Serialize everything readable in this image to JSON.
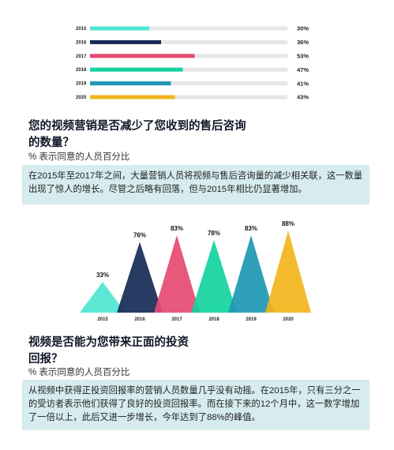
{
  "chart_data": [
    {
      "type": "bar",
      "orientation": "horizontal",
      "categories": [
        "2015",
        "2016",
        "2017",
        "2018",
        "2019",
        "2020"
      ],
      "values": [
        30,
        36,
        53,
        47,
        41,
        43
      ],
      "value_labels": [
        "30%",
        "36%",
        "53%",
        "47%",
        "41%",
        "43%"
      ],
      "colors": [
        "#4ee6d1",
        "#162a55",
        "#e54a71",
        "#12d3a0",
        "#1e98b4",
        "#f2b51b"
      ],
      "track_color": "#e6e6e6",
      "xlim": [
        0,
        100
      ],
      "title": "您的视频营销是否减少了您收到的售后咨询\n的数量？",
      "subtitle": "% 表示同意的人员百分比",
      "note": "在2015年至2017年之间，大量营销人员将视频与售后咨询量的减少相关联，这一数量出现了惊人的增长。尽管之后略有回落，但与2015年相比仍显著增加。"
    },
    {
      "type": "triangle-bar",
      "categories": [
        "2015",
        "2016",
        "2017",
        "2018",
        "2019",
        "2020"
      ],
      "values": [
        33,
        76,
        83,
        78,
        83,
        88
      ],
      "value_labels": [
        "33%",
        "76%",
        "83%",
        "78%",
        "83%",
        "88%"
      ],
      "colors": [
        "#4ee6d1",
        "#162a55",
        "#e54a71",
        "#12d3a0",
        "#1e98b4",
        "#f2b51b"
      ],
      "ylim": [
        0,
        100
      ],
      "title": "视频是否能为您带来正面的投资\n回报？",
      "subtitle": "% 表示同意的人员百分比",
      "note": "从视频中获得正投资回报率的营销人员数量几乎没有动摇。在2015年，只有三分之一的受访者表示他们获得了良好的投资回报率。而在接下来的12个月中，这一数字增加了一倍以上，此后又进一步增长，今年达到了88%的峰值。"
    }
  ]
}
